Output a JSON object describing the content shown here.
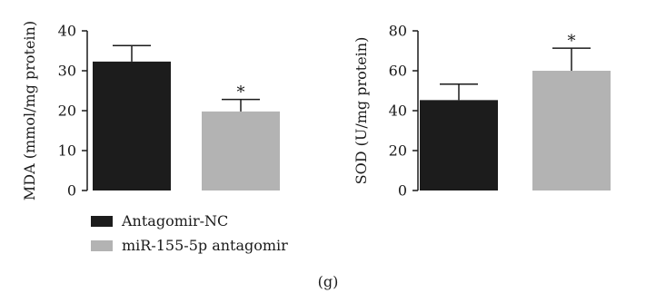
{
  "panel_label": "(g)",
  "colors": {
    "nc": "#1c1c1c",
    "antagomir": "#b3b3b3",
    "axis": "#1a1a1a"
  },
  "legend": [
    {
      "label": "Antagomir-NC",
      "color": "#1c1c1c"
    },
    {
      "label": "miR-155-5p antagomir",
      "color": "#b3b3b3"
    }
  ],
  "chart_data": [
    {
      "type": "bar",
      "ylabel": "MDA (mmol/mg protein)",
      "categories": [
        "Antagomir-NC",
        "miR-155-5p antagomir"
      ],
      "values": [
        32.3,
        19.8
      ],
      "errors": [
        4.0,
        3.0
      ],
      "significance": [
        "",
        "*"
      ],
      "ylim": [
        0,
        40
      ],
      "yticks": [
        0,
        10,
        20,
        30,
        40
      ],
      "ytick_labels": [
        "0",
        "10",
        "20",
        "30",
        "40"
      ]
    },
    {
      "type": "bar",
      "ylabel": "SOD (U/mg protein)",
      "categories": [
        "Antagomir-NC",
        "miR-155-5p antagomir"
      ],
      "values": [
        45.3,
        60.0
      ],
      "errors": [
        8.0,
        11.3
      ],
      "significance": [
        "",
        "*"
      ],
      "ylim": [
        0,
        80
      ],
      "yticks": [
        0,
        20,
        40,
        60,
        80
      ],
      "ytick_labels": [
        "0",
        "20",
        "40",
        "60",
        "80"
      ]
    }
  ]
}
